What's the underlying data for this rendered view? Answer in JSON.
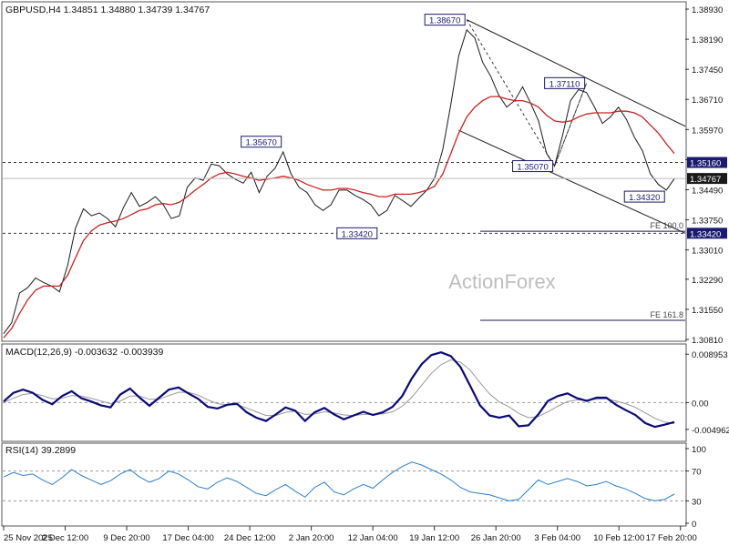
{
  "chart_data": [
    {
      "type": "line",
      "panel": "price",
      "title": "GBPUSD,H4  1.34851 1.34880 1.34739 1.34767",
      "watermark": "ActionForex",
      "y_axis_ticks": [
        "1.38930",
        "1.38190",
        "1.37450",
        "1.36710",
        "1.35970",
        "1.35230",
        "1.34490",
        "1.33750",
        "1.33010",
        "1.32290",
        "1.31550",
        "1.30810"
      ],
      "ylim": [
        1.3081,
        1.3893
      ],
      "last_price_label": "1.34767",
      "last_price": 1.34767,
      "levels": [
        {
          "label": "1.35160",
          "value": 1.3516,
          "style": "dashed"
        },
        {
          "label": "1.33420",
          "value": 1.3342,
          "style": "dashed"
        }
      ],
      "annotations": [
        {
          "label": "1.38670",
          "value": 1.3867
        },
        {
          "label": "1.35670",
          "value": 1.3567
        },
        {
          "label": "1.37110",
          "value": 1.3711
        },
        {
          "label": "1.35070",
          "value": 1.3507
        },
        {
          "label": "1.34320",
          "value": 1.3432
        },
        {
          "label": "1.33420",
          "value": 1.3342
        }
      ],
      "fibonacci": [
        {
          "label": "FE 100.0",
          "value": 1.3347
        },
        {
          "label": "FE 161.8",
          "value": 1.3128
        }
      ],
      "series": [
        {
          "name": "Close",
          "color": "#1a1a1a",
          "values": [
            1.3095,
            1.3122,
            1.3195,
            1.3208,
            1.3232,
            1.3221,
            1.3212,
            1.3198,
            1.3262,
            1.3355,
            1.3402,
            1.3385,
            1.3392,
            1.3378,
            1.3358,
            1.3405,
            1.3442,
            1.3408,
            1.3418,
            1.3432,
            1.3412,
            1.3378,
            1.3385,
            1.3455,
            1.3478,
            1.3472,
            1.3512,
            1.3508,
            1.3488,
            1.3475,
            1.3465,
            1.3492,
            1.3442,
            1.3482,
            1.3502,
            1.3542,
            1.3488,
            1.3455,
            1.3442,
            1.3412,
            1.3398,
            1.3412,
            1.3448,
            1.3448,
            1.3435,
            1.3425,
            1.3412,
            1.3385,
            1.3398,
            1.3435,
            1.3422,
            1.3408,
            1.3428,
            1.3448,
            1.3478,
            1.3548,
            1.3658,
            1.3778,
            1.3842,
            1.3822,
            1.3762,
            1.3728,
            1.3682,
            1.3652,
            1.3668,
            1.3702,
            1.3662,
            1.3618,
            1.3538,
            1.3508,
            1.3582,
            1.3668,
            1.3695,
            1.3688,
            1.3652,
            1.3612,
            1.3628,
            1.3652,
            1.3622,
            1.3578,
            1.3545,
            1.3488,
            1.3462,
            1.3448,
            1.3476
          ]
        },
        {
          "name": "MA",
          "color": "#cc2222",
          "values": [
            1.3085,
            1.3108,
            1.3145,
            1.3178,
            1.3202,
            1.3212,
            1.3212,
            1.3212,
            1.3238,
            1.3282,
            1.3324,
            1.3348,
            1.3362,
            1.3368,
            1.3372,
            1.3378,
            1.3388,
            1.3398,
            1.3402,
            1.3412,
            1.3415,
            1.3412,
            1.3418,
            1.3432,
            1.3448,
            1.3462,
            1.3478,
            1.3488,
            1.3492,
            1.3488,
            1.3482,
            1.3478,
            1.3472,
            1.3475,
            1.3478,
            1.3482,
            1.3478,
            1.3472,
            1.3462,
            1.3455,
            1.3448,
            1.3448,
            1.3452,
            1.3452,
            1.3448,
            1.3442,
            1.3438,
            1.3432,
            1.3432,
            1.3438,
            1.3438,
            1.3438,
            1.3442,
            1.3448,
            1.3458,
            1.3488,
            1.3538,
            1.3588,
            1.3628,
            1.3652,
            1.3668,
            1.3678,
            1.3678,
            1.3672,
            1.3668,
            1.3668,
            1.3662,
            1.3652,
            1.3632,
            1.3618,
            1.3615,
            1.3618,
            1.3628,
            1.3635,
            1.3638,
            1.3638,
            1.3638,
            1.3642,
            1.3642,
            1.3638,
            1.3628,
            1.3608,
            1.3588,
            1.3562,
            1.3538
          ]
        }
      ]
    },
    {
      "type": "line",
      "panel": "macd",
      "title": "MACD(12,26,9) -0.003632 -0.003939",
      "y_axis_ticks": [
        "0.008953",
        "0.00",
        "-0.004962"
      ],
      "ylim": [
        -0.006,
        0.0095
      ],
      "series": [
        {
          "name": "MACD",
          "color": "#0a0a7a",
          "values": [
            0.0002,
            0.0018,
            0.0024,
            0.0018,
            0.0005,
            -0.0003,
            0.0012,
            0.0021,
            0.0008,
            0.0002,
            -0.0005,
            -0.0009,
            0.0015,
            0.0026,
            0.0009,
            -0.0006,
            0.0009,
            0.0024,
            0.0028,
            0.0017,
            0.0007,
            -0.0008,
            -0.0011,
            -0.0004,
            -0.0002,
            -0.0018,
            -0.0028,
            -0.0034,
            -0.0022,
            -0.0009,
            -0.0015,
            -0.0034,
            -0.0018,
            -0.001,
            -0.0022,
            -0.0031,
            -0.0024,
            -0.0017,
            -0.0023,
            -0.0018,
            -0.0008,
            0.0012,
            0.0045,
            0.0071,
            0.0088,
            0.0093,
            0.0086,
            0.0066,
            0.0031,
            -0.0005,
            -0.0024,
            -0.0028,
            -0.0024,
            -0.0044,
            -0.0042,
            -0.0022,
            0.0003,
            0.0012,
            0.0017,
            0.0008,
            0.0003,
            0.0009,
            0.0009,
            -0.0004,
            -0.0014,
            -0.0023,
            -0.0038,
            -0.0045,
            -0.0041,
            -0.0036
          ]
        },
        {
          "name": "Signal",
          "color": "#999999",
          "values": [
            0.0,
            0.0008,
            0.0015,
            0.0017,
            0.0013,
            0.0007,
            0.0008,
            0.0013,
            0.0012,
            0.0008,
            0.0003,
            -0.0002,
            0.0003,
            0.0012,
            0.0012,
            0.0006,
            0.0006,
            0.0013,
            0.0019,
            0.0019,
            0.0014,
            0.0005,
            -0.0002,
            -0.0004,
            -0.0004,
            -0.001,
            -0.0017,
            -0.0024,
            -0.0024,
            -0.0018,
            -0.0016,
            -0.0022,
            -0.0021,
            -0.0017,
            -0.0019,
            -0.0023,
            -0.0024,
            -0.0022,
            -0.0022,
            -0.0021,
            -0.0017,
            -0.0007,
            0.001,
            0.0032,
            0.0054,
            0.007,
            0.0079,
            0.0075,
            0.006,
            0.0037,
            0.0016,
            0.0001,
            -0.0008,
            -0.002,
            -0.0028,
            -0.0026,
            -0.0017,
            -0.0007,
            0.0002,
            0.0005,
            0.0005,
            0.0006,
            0.0007,
            0.0003,
            -0.0002,
            -0.0009,
            -0.0019,
            -0.0029,
            -0.0036,
            -0.0039
          ]
        }
      ]
    },
    {
      "type": "line",
      "panel": "rsi",
      "title": "RSI(14) 39.2899",
      "y_axis_ticks": [
        "100",
        "70",
        "30",
        "0"
      ],
      "ylim": [
        0,
        100
      ],
      "levels": [
        70,
        30
      ],
      "series": [
        {
          "name": "RSI",
          "color": "#2a7fd0",
          "values": [
            62,
            68,
            64,
            66,
            58,
            52,
            61,
            72,
            64,
            58,
            52,
            57,
            66,
            72,
            62,
            55,
            60,
            70,
            66,
            58,
            49,
            46,
            55,
            61,
            56,
            48,
            40,
            37,
            45,
            52,
            43,
            35,
            48,
            55,
            42,
            38,
            46,
            52,
            47,
            58,
            68,
            76,
            82,
            78,
            72,
            66,
            58,
            48,
            42,
            40,
            38,
            34,
            30,
            32,
            45,
            58,
            52,
            56,
            60,
            56,
            50,
            52,
            56,
            50,
            46,
            40,
            33,
            30,
            32,
            39
          ]
        }
      ]
    }
  ],
  "x_axis_ticks": [
    "25 Nov 2025",
    "2 Dec 12:00",
    "9 Dec 20:00",
    "17 Dec 04:00",
    "24 Dec 12:00",
    "2 Jan 20:00",
    "12 Jan 04:00",
    "19 Jan 12:00",
    "26 Jan 20:00",
    "3 Feb 04:00",
    "10 Feb 12:00",
    "17 Feb 20:00"
  ]
}
